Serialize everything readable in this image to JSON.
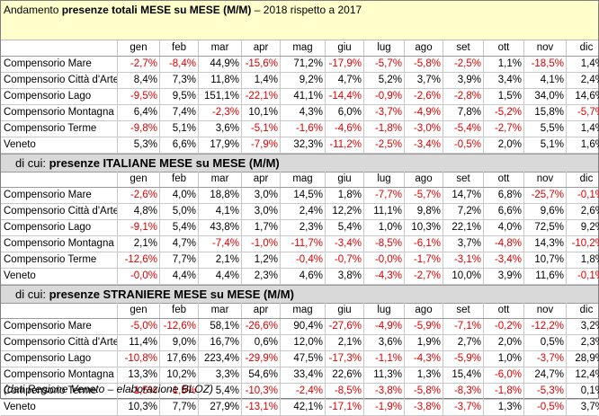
{
  "title": {
    "prefix": "Andamento ",
    "bold": "presenze totali MESE su MESE (M/M)",
    "suffix": " – 2018 rispetto a 2017"
  },
  "months": [
    "gen",
    "feb",
    "mar",
    "apr",
    "mag",
    "giu",
    "lug",
    "ago",
    "set",
    "ott",
    "nov",
    "dic"
  ],
  "sections": [
    {
      "header": null,
      "rows": [
        {
          "label": "Compensorio Mare",
          "values": [
            "-2,7%",
            "-8,4%",
            "44,9%",
            "-15,6%",
            "71,2%",
            "-17,9%",
            "-5,7%",
            "-5,8%",
            "-2,5%",
            "1,1%",
            "-18,5%",
            "1,4%"
          ]
        },
        {
          "label": "Compensorio Città d'Arte",
          "values": [
            "8,4%",
            "7,3%",
            "11,8%",
            "1,4%",
            "9,2%",
            "4,7%",
            "5,2%",
            "3,7%",
            "3,9%",
            "3,4%",
            "4,1%",
            "2,4%"
          ]
        },
        {
          "label": "Compensorio Lago",
          "values": [
            "-9,5%",
            "9,5%",
            "151,1%",
            "-22,1%",
            "41,1%",
            "-14,4%",
            "-0,9%",
            "-2,6%",
            "-2,8%",
            "1,5%",
            "34,0%",
            "14,6%"
          ]
        },
        {
          "label": "Compensorio Montagna",
          "values": [
            "6,4%",
            "7,4%",
            "-2,3%",
            "10,1%",
            "4,3%",
            "6,0%",
            "-3,7%",
            "-4,9%",
            "7,8%",
            "-5,2%",
            "15,8%",
            "-5,7%"
          ]
        },
        {
          "label": "Compensorio Terme",
          "values": [
            "-9,8%",
            "5,1%",
            "3,6%",
            "-5,1%",
            "-1,6%",
            "-4,6%",
            "-1,8%",
            "-3,0%",
            "-5,4%",
            "-2,7%",
            "5,5%",
            "1,4%"
          ]
        },
        {
          "label": "Veneto",
          "values": [
            "5,3%",
            "6,6%",
            "17,9%",
            "-7,9%",
            "32,3%",
            "-11,2%",
            "-2,5%",
            "-3,4%",
            "-0,5%",
            "2,0%",
            "5,1%",
            "1,6%"
          ]
        }
      ]
    },
    {
      "header": {
        "prefix": "di cui: ",
        "bold": "presenze ITALIANE MESE su MESE (M/M)"
      },
      "rows": [
        {
          "label": "Compensorio Mare",
          "values": [
            "-2,6%",
            "4,0%",
            "18,8%",
            "3,0%",
            "14,5%",
            "1,8%",
            "-7,7%",
            "-5,7%",
            "14,7%",
            "6,8%",
            "-25,7%",
            "-0,1%"
          ]
        },
        {
          "label": "Compensorio Città d'Arte",
          "values": [
            "4,8%",
            "5,0%",
            "4,1%",
            "3,0%",
            "2,4%",
            "12,2%",
            "11,1%",
            "9,8%",
            "7,2%",
            "6,6%",
            "9,6%",
            "2,6%"
          ]
        },
        {
          "label": "Compensorio Lago",
          "values": [
            "-9,1%",
            "5,4%",
            "43,8%",
            "1,7%",
            "2,3%",
            "5,4%",
            "1,0%",
            "10,3%",
            "22,1%",
            "4,0%",
            "72,5%",
            "9,2%"
          ]
        },
        {
          "label": "Compensorio Montagna",
          "values": [
            "2,1%",
            "4,7%",
            "-7,4%",
            "-1,0%",
            "-11,7%",
            "-3,4%",
            "-8,5%",
            "-6,1%",
            "3,7%",
            "-4,8%",
            "14,3%",
            "-10,2%"
          ]
        },
        {
          "label": "Compensorio Terme",
          "values": [
            "-12,6%",
            "7,7%",
            "2,1%",
            "1,2%",
            "-0,4%",
            "-0,7%",
            "-0,0%",
            "-1,7%",
            "-3,1%",
            "-3,4%",
            "10,7%",
            "1,8%"
          ]
        },
        {
          "label": "Veneto",
          "values": [
            "-0,0%",
            "4,4%",
            "4,4%",
            "2,3%",
            "4,6%",
            "3,8%",
            "-4,3%",
            "-2,7%",
            "10,0%",
            "3,9%",
            "11,6%",
            "-0,1%"
          ]
        }
      ]
    },
    {
      "header": {
        "prefix": "di cui: ",
        "bold": "presenze STRANIERE MESE su MESE (M/M)"
      },
      "rows": [
        {
          "label": "Compensorio Mare",
          "values": [
            "-5,0%",
            "-12,6%",
            "58,1%",
            "-26,6%",
            "90,4%",
            "-27,6%",
            "-4,9%",
            "-5,9%",
            "-7,1%",
            "-0,2%",
            "-12,2%",
            "3,2%"
          ]
        },
        {
          "label": "Compensorio Città d'Arte",
          "values": [
            "11,4%",
            "9,0%",
            "16,7%",
            "0,6%",
            "12,0%",
            "2,1%",
            "3,6%",
            "1,9%",
            "2,7%",
            "2,0%",
            "0,5%",
            "2,3%"
          ]
        },
        {
          "label": "Compensorio Lago",
          "values": [
            "-10,8%",
            "17,6%",
            "223,4%",
            "-29,9%",
            "47,5%",
            "-17,3%",
            "-1,1%",
            "-4,3%",
            "-5,9%",
            "1,0%",
            "-3,7%",
            "28,9%"
          ]
        },
        {
          "label": "Compensorio Montagna",
          "values": [
            "13,3%",
            "10,2%",
            "3,3%",
            "54,6%",
            "33,4%",
            "22,6%",
            "11,3%",
            "1,3%",
            "15,4%",
            "-6,0%",
            "24,7%",
            "12,4%"
          ]
        },
        {
          "label": "Compensorio Terme",
          "values": [
            "-1,5%",
            "-1,5%",
            "5,4%",
            "-10,3%",
            "-2,4%",
            "-8,5%",
            "-3,8%",
            "-5,8%",
            "-8,3%",
            "-1,8%",
            "-5,3%",
            "0,1%"
          ]
        },
        {
          "label": "Veneto",
          "values": [
            "10,3%",
            "7,7%",
            "27,9%",
            "-13,1%",
            "42,1%",
            "-17,1%",
            "-1,9%",
            "-3,8%",
            "-3,7%",
            "1,3%",
            "-0,5%",
            "3,7%"
          ]
        }
      ]
    }
  ],
  "footer": "(dati Regione Veneto – elaborazione BLOZ)",
  "colors": {
    "negative": "#e00000",
    "title_band": "#ffffcc",
    "section_band": "#d9d9d9"
  }
}
